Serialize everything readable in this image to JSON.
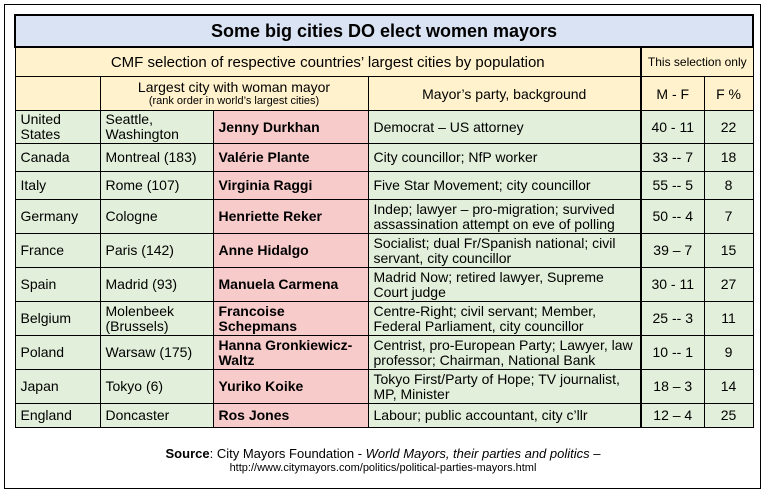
{
  "title": "Some big cities DO elect women mayors",
  "subtitle": "CMF selection of respective countries’ largest cities by population",
  "selection_header": "This selection only",
  "headers": {
    "city": "Largest city with woman mayor",
    "city_sub": "(rank order in world’s largest cities)",
    "party": "Mayor’s party, background",
    "mf": "M - F",
    "fpct": "F %"
  },
  "rows": [
    {
      "country": "United States",
      "city": "Seattle, Washington",
      "mayor": "Jenny Durkhan",
      "party": "Democrat – US attorney",
      "mf": "40 - 11",
      "fpct": "22"
    },
    {
      "country": "Canada",
      "city": "Montreal (183)",
      "mayor": "Valérie Plante",
      "party": "City councillor; NfP worker",
      "mf": "33 -- 7",
      "fpct": "18"
    },
    {
      "country": "Italy",
      "city": "Rome (107)",
      "mayor": "Virginia Raggi",
      "party": "Five Star Movement; city councillor",
      "mf": "55 -- 5",
      "fpct": "8"
    },
    {
      "country": "Germany",
      "city": "Cologne",
      "mayor": "Henriette Reker",
      "party": "Indep; lawyer – pro-migration; survived assassination attempt on eve of polling",
      "mf": "50 -- 4",
      "fpct": "7"
    },
    {
      "country": "France",
      "city": "Paris (142)",
      "mayor": "Anne Hidalgo",
      "party": "Socialist; dual Fr/Spanish national; civil servant, city councillor",
      "mf": "39 – 7",
      "fpct": "15"
    },
    {
      "country": "Spain",
      "city": "Madrid (93)",
      "mayor": "Manuela Carmena",
      "party": "Madrid Now; retired lawyer, Supreme Court judge",
      "mf": "30 - 11",
      "fpct": "27"
    },
    {
      "country": "Belgium",
      "city": "Molenbeek (Brussels)",
      "mayor": "Francoise Schepmans",
      "party": "Centre-Right; civil servant; Member, Federal Parliament, city councillor",
      "mf": "25 -- 3",
      "fpct": "11"
    },
    {
      "country": "Poland",
      "city": "Warsaw (175)",
      "mayor": "Hanna Gronkiewicz-Waltz",
      "party": "Centrist, pro-European Party; Lawyer, law professor; Chairman, National Bank",
      "mf": "10 -- 1",
      "fpct": "9"
    },
    {
      "country": "Japan",
      "city": "Tokyo (6)",
      "mayor": "Yuriko Koike",
      "party": "Tokyo First/Party of Hope; TV journalist, MP, Minister",
      "mf": "18 – 3",
      "fpct": "14"
    },
    {
      "country": "England",
      "city": "Doncaster",
      "mayor": "Ros Jones",
      "party": "Labour; public accountant, city c’llr",
      "mf": "12 – 4",
      "fpct": "25"
    }
  ],
  "source": {
    "label": "Source",
    "org": ": City Mayors Foundation - ",
    "work": "World Mayors, their parties and politics",
    "dash": " –",
    "url": "http://www.citymayors.com/politics/political-parties-mayors.html"
  }
}
